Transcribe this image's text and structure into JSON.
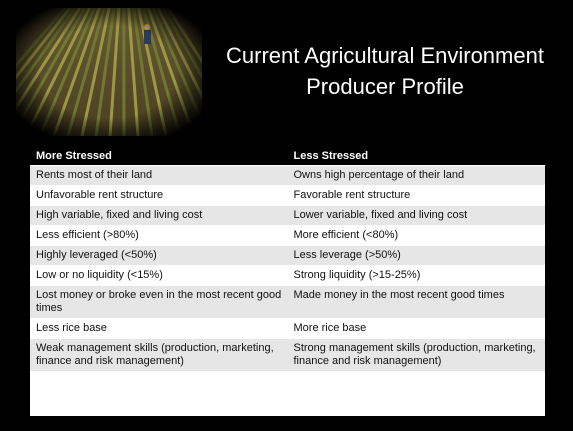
{
  "header": {
    "title_lines": [
      "Current Agricultural Environment",
      "Producer Profile"
    ]
  },
  "table": {
    "columns": [
      "More Stressed",
      "Less Stressed"
    ],
    "rows": [
      [
        "Rents most of their land",
        "Owns high percentage of their land"
      ],
      [
        "Unfavorable rent structure",
        "Favorable rent structure"
      ],
      [
        "High variable, fixed and living cost",
        "Lower variable, fixed and living cost"
      ],
      [
        "Less efficient (>80%)",
        "More efficient (<80%)"
      ],
      [
        "Highly leveraged (<50%)",
        "Less leverage (>50%)"
      ],
      [
        "Low or no liquidity (<15%)",
        "Strong liquidity (>15-25%)"
      ],
      [
        "Lost money or broke even in the most recent good times",
        "Made money in the most recent good times"
      ],
      [
        "Less rice base",
        "More rice base"
      ],
      [
        "Weak management skills (production, marketing, finance and risk management)",
        "Strong management skills (production, marketing, finance and risk management)"
      ]
    ]
  }
}
